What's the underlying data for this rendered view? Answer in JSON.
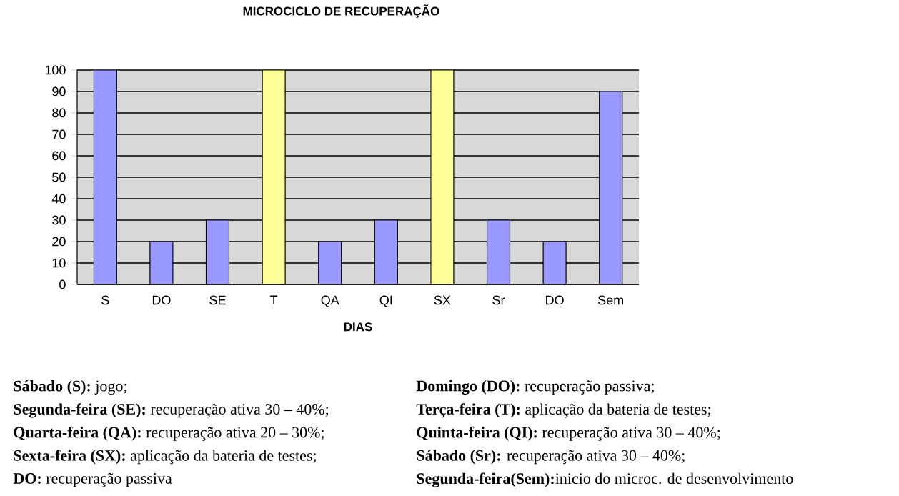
{
  "chart_data": {
    "type": "bar",
    "title": "MICROCICLO DE RECUPERAÇÃO",
    "xlabel": "DIAS",
    "categories": [
      "S",
      "DO",
      "SE",
      "T",
      "QA",
      "QI",
      "SX",
      "Sr",
      "DO",
      "Sem"
    ],
    "values": [
      100,
      20,
      30,
      100,
      20,
      30,
      100,
      30,
      20,
      90
    ],
    "colors": [
      "#9999ff",
      "#9999ff",
      "#9999ff",
      "#ffff99",
      "#9999ff",
      "#9999ff",
      "#ffff99",
      "#9999ff",
      "#9999ff",
      "#9999ff"
    ],
    "ylim": [
      0,
      100
    ],
    "yticks": [
      0,
      10,
      20,
      30,
      40,
      50,
      60,
      70,
      80,
      90,
      100
    ],
    "grid": "y",
    "annotations": [
      "**Sábado (S):** jogo;",
      "**Segunda-feira (SE):** recuperação ativa 30 – 40%;",
      "**Quarta-feira (QA):** recuperação ativa 20 – 30%;",
      "**Sexta-feira (SX):** aplicação da bateria de testes;",
      "**DO:** recuperação passiva",
      "**Domingo (DO):** recuperação passiva;",
      "**Terça-feira (T):** aplicação da bateria de testes;",
      "**Quinta-feira (QI):** recuperação ativa 30 – 40%;",
      "**Sábado (Sr):** recuperação ativa 30 – 40%;",
      "**Segunda-feira(Sem):**inicio do microc. de desenvolvimento"
    ]
  }
}
